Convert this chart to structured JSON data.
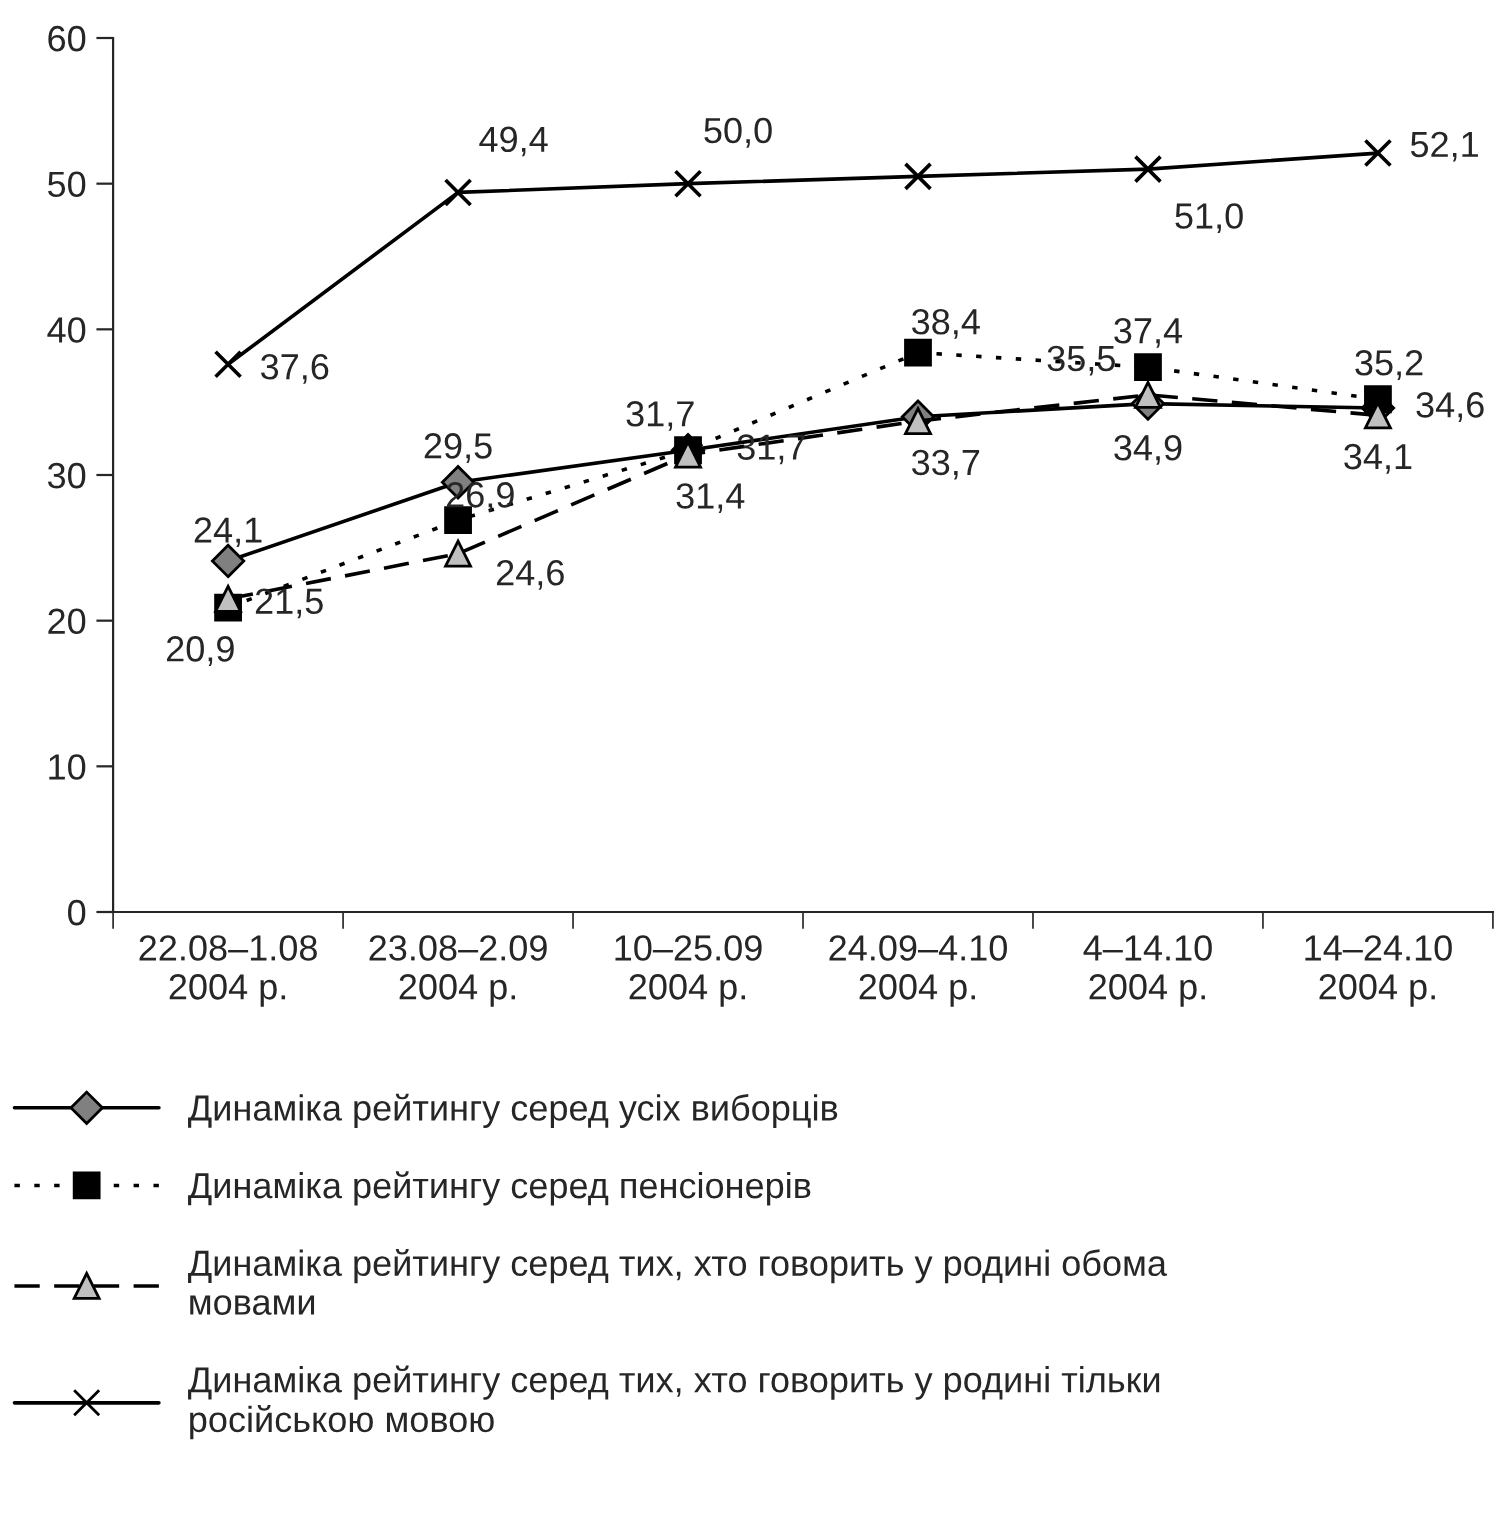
{
  "chart_data": {
    "type": "line",
    "categories": [
      "22.08–1.08\n2004 р.",
      "23.08–2.09\n2004 р.",
      "10–25.09\n2004 р.",
      "24.09–4.10\n2004 р.",
      "4–14.10\n2004 р.",
      "14–24.10\n2004 р."
    ],
    "series": [
      {
        "name": "Динаміка рейтингу серед усіх виборців",
        "color": "#808080",
        "marker": "diamond",
        "line_style": "solid",
        "values": [
          24.1,
          29.5,
          31.7,
          34.0,
          34.9,
          34.6
        ],
        "value_labels": [
          "24,1",
          "29,5",
          "31,7",
          null,
          "34,9",
          "34,6"
        ]
      },
      {
        "name": "Динаміка рейтингу серед пенсіонерів",
        "color": "#000000",
        "marker": "square",
        "line_style": "dotted",
        "values": [
          20.9,
          26.9,
          31.7,
          38.4,
          37.4,
          35.2
        ],
        "value_labels": [
          "20,9",
          "26,9",
          "31,7",
          "38,4",
          "37,4",
          "35,2"
        ]
      },
      {
        "name": "Динаміка рейтингу серед тих, хто говорить у родині обома\nмовами",
        "color": "#c0c0c0",
        "marker": "triangle",
        "line_style": "dashed",
        "values": [
          21.5,
          24.6,
          31.4,
          33.7,
          35.5,
          34.1
        ],
        "value_labels": [
          "21,5",
          "24,6",
          "31,4",
          "33,7",
          "35,5",
          "34,1"
        ]
      },
      {
        "name": "Динаміка рейтингу серед тих, хто говорить у родині тільки\nросійською мовою",
        "color": "#000000",
        "marker": "cross",
        "line_style": "solid",
        "values": [
          37.6,
          49.4,
          50.0,
          50.5,
          51.0,
          52.1
        ],
        "value_labels": [
          "37,6",
          "49,4",
          "50,0",
          null,
          "51,0",
          "52,1"
        ]
      }
    ],
    "ylim": [
      0,
      60
    ],
    "yticks": [
      0,
      10,
      20,
      30,
      40,
      50,
      60
    ],
    "grid": false,
    "legend": "bottom"
  }
}
